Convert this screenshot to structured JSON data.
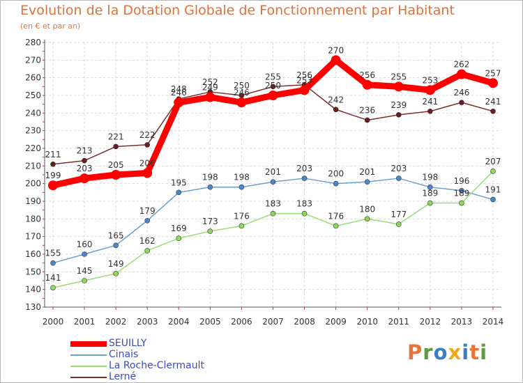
{
  "title": "Evolution de la Dotation Globale de Fonctionnement par Habitant",
  "subtitle": "(en € et par an)",
  "logo": [
    "P",
    "r",
    "o",
    "x",
    "i",
    "t",
    "i"
  ],
  "logo_colors": [
    "#e8743a",
    "#5a9e3a",
    "#3a7fc4",
    "#f2a81d",
    "#3a7fc4",
    "#e8743a",
    "#5a9e3a"
  ],
  "chart_data": {
    "type": "line",
    "x": [
      "2000",
      "2001",
      "2002",
      "2003",
      "2004",
      "2005",
      "2006",
      "2007",
      "2008",
      "2009",
      "2010",
      "2011",
      "2012",
      "2013",
      "2014"
    ],
    "ylim": [
      130,
      280
    ],
    "yticks": [
      "130",
      "140",
      "150",
      "160",
      "170",
      "180",
      "190",
      "200",
      "210",
      "220",
      "230",
      "240",
      "250",
      "260",
      "270",
      "280"
    ],
    "grid": true,
    "legend_position": "bottom-left",
    "series": [
      {
        "name": "SEUILLY",
        "color": "#ff0000",
        "values": [
          199,
          203,
          205,
          206,
          246,
          249,
          246,
          250,
          253,
          270,
          256,
          255,
          253,
          262,
          257
        ]
      },
      {
        "name": "Cinais",
        "color": "#6a9fd0",
        "values": [
          155,
          160,
          165,
          179,
          195,
          198,
          198,
          201,
          203,
          200,
          201,
          203,
          198,
          196,
          191
        ]
      },
      {
        "name": "La Roche-Clermault",
        "color": "#99dd70",
        "values": [
          141,
          145,
          149,
          162,
          169,
          173,
          176,
          183,
          183,
          176,
          180,
          177,
          189,
          189,
          207
        ]
      },
      {
        "name": "Lerné",
        "color": "#7a2e2e",
        "values": [
          211,
          213,
          221,
          222,
          248,
          252,
          250,
          255,
          256,
          242,
          236,
          239,
          241,
          246,
          241
        ]
      }
    ]
  }
}
